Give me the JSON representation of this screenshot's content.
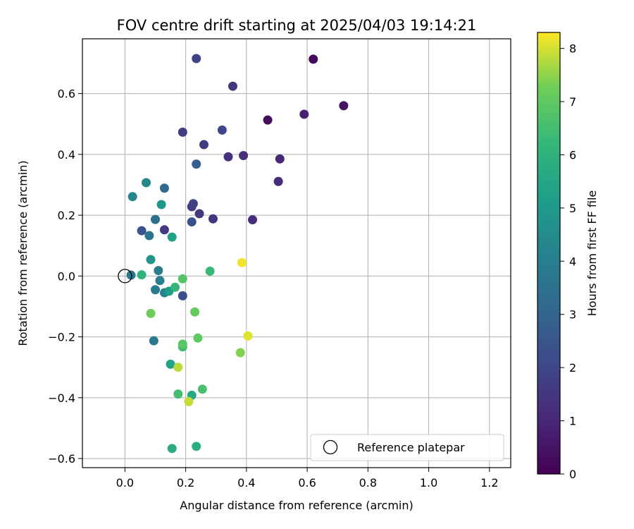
{
  "chart_data": {
    "type": "scatter",
    "title": "FOV centre drift starting at 2025/04/03 19:14:21",
    "xlabel": "Angular distance from reference (arcmin)",
    "ylabel": "Rotation from reference (arcmin)",
    "xlim": [
      -0.14,
      1.27
    ],
    "ylim": [
      -0.63,
      0.78
    ],
    "xticks": [
      0.0,
      0.2,
      0.4,
      0.6,
      0.8,
      1.0,
      1.2
    ],
    "xtick_labels": [
      "0.0",
      "0.2",
      "0.4",
      "0.6",
      "0.8",
      "1.0",
      "1.2"
    ],
    "yticks": [
      0.6,
      0.4,
      0.2,
      0.0,
      -0.2,
      -0.4,
      -0.6
    ],
    "ytick_labels": [
      "0.6",
      "0.4",
      "0.2",
      "0.0",
      "−0.2",
      "−0.4",
      "−0.6"
    ],
    "grid": true,
    "colorbar": {
      "label": "Hours from first FF file",
      "colormap": "viridis",
      "range": [
        0,
        8.3
      ],
      "ticks": [
        0,
        1,
        2,
        3,
        4,
        5,
        6,
        7,
        8
      ],
      "tick_labels": [
        "0",
        "1",
        "2",
        "3",
        "4",
        "5",
        "6",
        "7",
        "8"
      ]
    },
    "legend": {
      "placement": "lower-right",
      "entries": [
        {
          "label": "Reference platepar",
          "marker": "hollow-circle"
        }
      ]
    },
    "reference_point": {
      "x": 0.0,
      "y": 0.0
    },
    "points": [
      {
        "x": 0.62,
        "y": 0.713,
        "c": 0.2
      },
      {
        "x": 0.47,
        "y": 0.513,
        "c": 0.3
      },
      {
        "x": 0.72,
        "y": 0.56,
        "c": 0.5
      },
      {
        "x": 0.59,
        "y": 0.532,
        "c": 0.8
      },
      {
        "x": 0.51,
        "y": 0.385,
        "c": 1.0
      },
      {
        "x": 0.505,
        "y": 0.311,
        "c": 1.1
      },
      {
        "x": 0.42,
        "y": 0.185,
        "c": 1.2
      },
      {
        "x": 0.39,
        "y": 0.396,
        "c": 1.25
      },
      {
        "x": 0.34,
        "y": 0.392,
        "c": 1.3
      },
      {
        "x": 0.29,
        "y": 0.188,
        "c": 1.4
      },
      {
        "x": 0.355,
        "y": 0.624,
        "c": 1.5
      },
      {
        "x": 0.245,
        "y": 0.205,
        "c": 1.5
      },
      {
        "x": 0.22,
        "y": 0.228,
        "c": 1.6
      },
      {
        "x": 0.13,
        "y": 0.152,
        "c": 1.6
      },
      {
        "x": 0.19,
        "y": 0.473,
        "c": 1.7
      },
      {
        "x": 0.26,
        "y": 0.432,
        "c": 1.7
      },
      {
        "x": 0.225,
        "y": 0.238,
        "c": 1.8
      },
      {
        "x": 0.235,
        "y": 0.715,
        "c": 1.9
      },
      {
        "x": 0.32,
        "y": 0.48,
        "c": 2.0
      },
      {
        "x": 0.22,
        "y": 0.178,
        "c": 2.3
      },
      {
        "x": 0.19,
        "y": -0.065,
        "c": 2.3
      },
      {
        "x": 0.055,
        "y": 0.149,
        "c": 2.4
      },
      {
        "x": 0.235,
        "y": 0.368,
        "c": 2.8
      },
      {
        "x": 0.13,
        "y": 0.289,
        "c": 3.2
      },
      {
        "x": 0.1,
        "y": 0.186,
        "c": 3.4
      },
      {
        "x": 0.08,
        "y": 0.133,
        "c": 3.6
      },
      {
        "x": 0.095,
        "y": -0.213,
        "c": 3.7
      },
      {
        "x": 0.02,
        "y": 0.003,
        "c": 3.8
      },
      {
        "x": 0.11,
        "y": 0.018,
        "c": 3.9
      },
      {
        "x": 0.1,
        "y": -0.045,
        "c": 3.9
      },
      {
        "x": 0.115,
        "y": -0.015,
        "c": 4.0
      },
      {
        "x": 0.13,
        "y": -0.055,
        "c": 4.1
      },
      {
        "x": 0.025,
        "y": 0.261,
        "c": 4.3
      },
      {
        "x": 0.07,
        "y": 0.307,
        "c": 4.4
      },
      {
        "x": 0.085,
        "y": 0.054,
        "c": 4.8
      },
      {
        "x": 0.12,
        "y": 0.235,
        "c": 4.9
      },
      {
        "x": 0.145,
        "y": -0.05,
        "c": 5.1
      },
      {
        "x": 0.155,
        "y": 0.128,
        "c": 5.3
      },
      {
        "x": 0.15,
        "y": -0.29,
        "c": 5.4
      },
      {
        "x": 0.22,
        "y": -0.392,
        "c": 5.6
      },
      {
        "x": 0.155,
        "y": -0.567,
        "c": 5.7
      },
      {
        "x": 0.235,
        "y": -0.56,
        "c": 5.8
      },
      {
        "x": 0.055,
        "y": 0.004,
        "c": 6.0
      },
      {
        "x": 0.165,
        "y": -0.037,
        "c": 6.1
      },
      {
        "x": 0.28,
        "y": 0.016,
        "c": 6.3
      },
      {
        "x": 0.19,
        "y": -0.233,
        "c": 6.4
      },
      {
        "x": 0.175,
        "y": -0.388,
        "c": 6.5
      },
      {
        "x": 0.255,
        "y": -0.372,
        "c": 6.6
      },
      {
        "x": 0.19,
        "y": -0.009,
        "c": 6.8
      },
      {
        "x": 0.19,
        "y": -0.224,
        "c": 6.9
      },
      {
        "x": 0.24,
        "y": -0.204,
        "c": 7.0
      },
      {
        "x": 0.23,
        "y": -0.118,
        "c": 7.1
      },
      {
        "x": 0.085,
        "y": -0.123,
        "c": 7.2
      },
      {
        "x": 0.38,
        "y": -0.252,
        "c": 7.4
      },
      {
        "x": 0.175,
        "y": -0.3,
        "c": 7.8
      },
      {
        "x": 0.21,
        "y": -0.413,
        "c": 7.9
      },
      {
        "x": 0.405,
        "y": -0.197,
        "c": 8.1
      },
      {
        "x": 0.385,
        "y": 0.044,
        "c": 8.2
      }
    ]
  }
}
